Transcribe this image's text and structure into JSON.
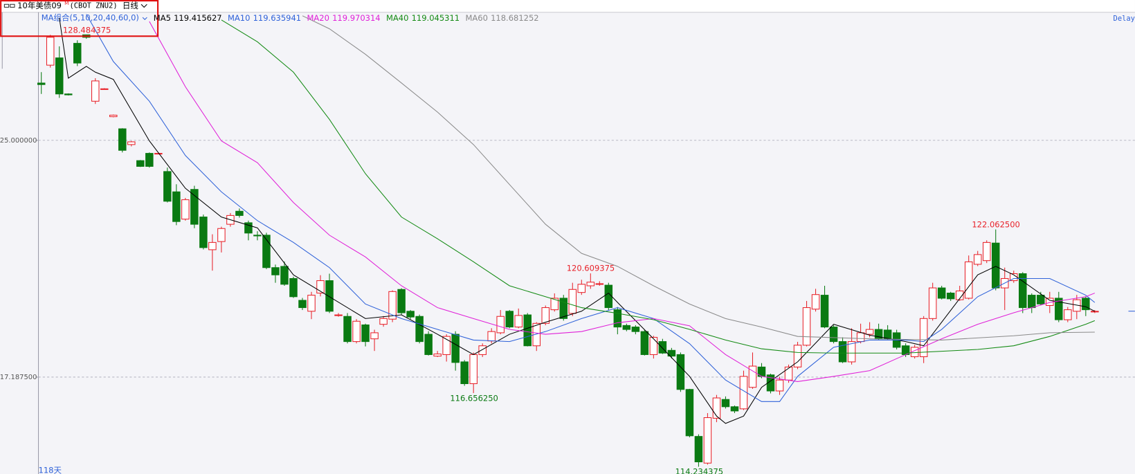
{
  "chart_data": {
    "type": "candlestick",
    "header": {
      "instrument": "10年美债09",
      "flag": "M",
      "code": "(CBOT ZNU2)",
      "period": "日线"
    },
    "ma_group": "MA组合(5,10,20,40,60,0)",
    "delay": "Delay",
    "days": "118天",
    "ylim": [
      113.99,
      129.2
    ],
    "yticks": [
      {
        "value": 125,
        "label": "125.000000"
      },
      {
        "value": 117.1875,
        "label": "117.187500"
      }
    ],
    "grid": true,
    "up_color": "#e8222a",
    "down_color": "#0a7a12",
    "annotations": [
      "128.484375",
      "122.062500",
      "120.609375",
      "116.656250",
      "114.234375"
    ],
    "ohlc": [
      [
        126.89,
        127.25,
        126.53,
        126.84
      ],
      [
        127.48,
        128.48,
        127.4,
        128.4
      ],
      [
        127.72,
        128.1,
        126.4,
        126.53
      ],
      [
        126.53,
        126.55,
        126.48,
        126.5
      ],
      [
        128.2,
        128.3,
        127.45,
        127.55
      ],
      [
        128.48,
        128.48,
        128.35,
        128.4
      ],
      [
        126.29,
        127.05,
        126.2,
        126.96
      ],
      [
        126.7,
        126.72,
        126.68,
        126.7
      ],
      [
        125.78,
        125.85,
        125.76,
        125.83
      ],
      [
        125.38,
        125.4,
        124.6,
        124.67
      ],
      [
        124.86,
        124.98,
        124.8,
        124.95
      ],
      [
        124.33,
        124.35,
        124.12,
        124.14
      ],
      [
        124.57,
        124.6,
        124.1,
        124.14
      ],
      [
        124.57,
        124.58,
        124.56,
        124.57
      ],
      [
        123.97,
        124.1,
        122.95,
        122.99
      ],
      [
        123.3,
        123.55,
        122.2,
        122.32
      ],
      [
        122.4,
        123.1,
        122.35,
        123.04
      ],
      [
        123.38,
        123.5,
        122.1,
        122.23
      ],
      [
        122.47,
        122.55,
        121.4,
        121.46
      ],
      [
        121.39,
        121.9,
        120.7,
        121.63
      ],
      [
        121.66,
        122.15,
        121.3,
        122.09
      ],
      [
        122.23,
        122.6,
        122.15,
        122.52
      ],
      [
        122.66,
        122.75,
        122.45,
        122.52
      ],
      [
        122.28,
        122.35,
        121.7,
        121.94
      ],
      [
        121.87,
        122.0,
        121.7,
        121.85
      ],
      [
        121.87,
        121.95,
        120.75,
        120.8
      ],
      [
        120.8,
        120.9,
        120.3,
        120.56
      ],
      [
        120.84,
        121.0,
        120.2,
        120.25
      ],
      [
        120.44,
        120.5,
        119.8,
        119.84
      ],
      [
        119.72,
        119.8,
        119.4,
        119.48
      ],
      [
        119.36,
        120.0,
        119.1,
        119.89
      ],
      [
        119.96,
        120.55,
        119.85,
        120.37
      ],
      [
        120.37,
        120.6,
        119.3,
        119.36
      ],
      [
        119.24,
        119.3,
        119.18,
        119.24
      ],
      [
        119.19,
        119.3,
        118.3,
        118.36
      ],
      [
        118.36,
        119.1,
        118.3,
        119.03
      ],
      [
        118.91,
        118.95,
        118.2,
        118.36
      ],
      [
        118.45,
        118.75,
        118.05,
        118.65
      ],
      [
        118.93,
        119.2,
        118.85,
        119.12
      ],
      [
        119.1,
        120.05,
        119.0,
        120.01
      ],
      [
        120.08,
        120.12,
        119.25,
        119.31
      ],
      [
        119.36,
        119.4,
        119.1,
        119.17
      ],
      [
        119.19,
        119.25,
        118.3,
        118.36
      ],
      [
        118.6,
        118.7,
        117.9,
        117.93
      ],
      [
        117.88,
        118.05,
        117.85,
        117.95
      ],
      [
        117.93,
        118.6,
        117.7,
        118.53
      ],
      [
        118.6,
        118.7,
        117.4,
        117.67
      ],
      [
        117.69,
        117.75,
        116.9,
        116.97
      ],
      [
        116.97,
        118.0,
        116.66,
        117.93
      ],
      [
        117.93,
        118.3,
        117.85,
        118.22
      ],
      [
        118.38,
        118.8,
        118.3,
        118.69
      ],
      [
        118.65,
        119.4,
        118.6,
        119.19
      ],
      [
        119.36,
        119.4,
        118.8,
        118.84
      ],
      [
        118.84,
        119.45,
        118.8,
        119.22
      ],
      [
        119.24,
        119.3,
        118.2,
        118.22
      ],
      [
        118.22,
        119.0,
        118.05,
        118.96
      ],
      [
        118.96,
        119.55,
        118.9,
        119.48
      ],
      [
        119.41,
        119.95,
        119.35,
        119.79
      ],
      [
        119.79,
        119.9,
        119.05,
        119.12
      ],
      [
        119.29,
        120.3,
        119.2,
        120.08
      ],
      [
        119.98,
        120.4,
        119.9,
        120.25
      ],
      [
        120.2,
        120.61,
        120.1,
        120.32
      ],
      [
        120.27,
        120.35,
        120.2,
        120.27
      ],
      [
        120.22,
        120.3,
        119.4,
        119.48
      ],
      [
        119.41,
        119.5,
        118.6,
        118.84
      ],
      [
        118.89,
        118.95,
        118.7,
        118.76
      ],
      [
        118.84,
        118.9,
        118.6,
        118.69
      ],
      [
        118.69,
        118.75,
        117.9,
        117.93
      ],
      [
        117.93,
        118.55,
        117.8,
        118.5
      ],
      [
        118.36,
        118.45,
        117.95,
        117.98
      ],
      [
        118.07,
        118.15,
        117.8,
        117.88
      ],
      [
        117.93,
        118.0,
        116.7,
        116.78
      ],
      [
        116.78,
        116.8,
        115.2,
        115.25
      ],
      [
        115.23,
        115.3,
        114.23,
        114.39
      ],
      [
        114.35,
        116.0,
        114.3,
        115.85
      ],
      [
        115.83,
        116.6,
        115.7,
        116.5
      ],
      [
        116.45,
        116.55,
        116.15,
        116.21
      ],
      [
        116.21,
        116.25,
        116.0,
        116.07
      ],
      [
        116.14,
        117.4,
        116.1,
        117.21
      ],
      [
        116.85,
        118.0,
        116.8,
        117.55
      ],
      [
        117.52,
        117.65,
        117.15,
        117.21
      ],
      [
        117.26,
        117.3,
        116.65,
        116.73
      ],
      [
        116.73,
        117.2,
        116.6,
        117.09
      ],
      [
        117.09,
        117.6,
        117.0,
        117.52
      ],
      [
        117.52,
        118.35,
        117.45,
        118.24
      ],
      [
        118.24,
        119.7,
        118.2,
        119.48
      ],
      [
        119.43,
        120.1,
        119.35,
        119.91
      ],
      [
        119.89,
        120.2,
        118.8,
        118.84
      ],
      [
        118.84,
        118.9,
        118.3,
        118.36
      ],
      [
        118.36,
        118.5,
        117.65,
        117.69
      ],
      [
        117.69,
        118.8,
        117.6,
        118.36
      ],
      [
        118.36,
        118.95,
        118.3,
        118.65
      ],
      [
        118.6,
        119.0,
        118.5,
        118.76
      ],
      [
        118.76,
        118.95,
        118.4,
        118.45
      ],
      [
        118.74,
        118.9,
        118.4,
        118.45
      ],
      [
        118.65,
        118.75,
        118.1,
        118.17
      ],
      [
        118.22,
        118.3,
        117.85,
        117.93
      ],
      [
        117.86,
        118.25,
        117.8,
        118.17
      ],
      [
        117.86,
        119.2,
        117.65,
        119.12
      ],
      [
        119.12,
        120.3,
        119.05,
        120.13
      ],
      [
        120.13,
        120.2,
        119.75,
        119.79
      ],
      [
        119.96,
        120.0,
        119.7,
        119.77
      ],
      [
        119.74,
        120.2,
        119.7,
        120.03
      ],
      [
        119.79,
        121.2,
        119.75,
        120.99
      ],
      [
        120.91,
        121.35,
        120.85,
        121.23
      ],
      [
        121.03,
        121.7,
        120.95,
        121.63
      ],
      [
        121.61,
        122.06,
        120.05,
        120.13
      ],
      [
        120.13,
        120.8,
        119.4,
        120.44
      ],
      [
        120.37,
        120.7,
        120.3,
        120.6
      ],
      [
        120.6,
        120.65,
        119.3,
        119.48
      ],
      [
        119.89,
        119.95,
        119.3,
        119.48
      ],
      [
        119.89,
        120.0,
        119.55,
        119.6
      ],
      [
        119.55,
        120.0,
        119.3,
        119.79
      ],
      [
        119.79,
        120.0,
        119.0,
        119.08
      ],
      [
        119.08,
        119.5,
        119.0,
        119.41
      ],
      [
        119.36,
        119.9,
        119.1,
        119.74
      ],
      [
        119.79,
        119.85,
        119.2,
        119.41
      ],
      [
        119.36,
        119.4,
        119.3,
        119.36
      ]
    ],
    "series": [
      {
        "name": "MA5",
        "label": "119.415627",
        "color": "#000000",
        "x": [
          2,
          3,
          5,
          6,
          8,
          12,
          16,
          20,
          24,
          28,
          32,
          36,
          40,
          44,
          48,
          52,
          56,
          60,
          63,
          64,
          68,
          72,
          75,
          76,
          78,
          80,
          84,
          88,
          92,
          96,
          98,
          100,
          104,
          106,
          108,
          112,
          116,
          117
        ],
        "values": [
          129.04,
          127.05,
          127.44,
          127.25,
          127.01,
          124.98,
          123.42,
          122.47,
          122.11,
          120.56,
          119.84,
          119.12,
          119.24,
          118.6,
          117.93,
          118.6,
          119.0,
          119.36,
          119.96,
          119.65,
          118.45,
          117.21,
          115.9,
          115.66,
          115.9,
          116.85,
          117.69,
          118.93,
          118.57,
          118.36,
          118.22,
          119.0,
          120.56,
          120.84,
          120.56,
          119.72,
          119.51,
          119.36
        ]
      },
      {
        "name": "MA10",
        "label": "119.635941",
        "color": "#2f62d9",
        "x": [
          5,
          8,
          12,
          16,
          20,
          24,
          28,
          32,
          36,
          40,
          44,
          48,
          52,
          56,
          60,
          64,
          68,
          72,
          76,
          80,
          82,
          84,
          88,
          92,
          96,
          98,
          100,
          104,
          108,
          112,
          116,
          117
        ],
        "values": [
          129.16,
          127.6,
          126.29,
          124.5,
          123.3,
          122.35,
          121.63,
          120.8,
          119.6,
          119.12,
          118.76,
          118.41,
          118.36,
          118.69,
          119.12,
          119.48,
          119.12,
          118.29,
          117.09,
          116.38,
          116.38,
          117.21,
          118.17,
          118.41,
          118.41,
          118.36,
          118.76,
          119.84,
          120.44,
          120.44,
          119.89,
          119.65
        ]
      },
      {
        "name": "MA20",
        "label": "119.970314",
        "color": "#e020d8",
        "x": [
          12,
          16,
          20,
          24,
          28,
          32,
          36,
          40,
          44,
          48,
          52,
          56,
          60,
          64,
          68,
          72,
          76,
          80,
          84,
          88,
          92,
          96,
          100,
          104,
          108,
          112,
          116,
          117
        ],
        "values": [
          128.92,
          126.77,
          124.98,
          124.26,
          122.95,
          121.87,
          121.15,
          120.2,
          119.48,
          119.12,
          118.76,
          118.6,
          118.69,
          118.98,
          119.12,
          118.88,
          117.93,
          117.21,
          117.04,
          117.21,
          117.4,
          117.93,
          118.45,
          118.93,
          119.31,
          119.65,
          119.84,
          119.96
        ]
      },
      {
        "name": "MA40",
        "label": "119.045311",
        "color": "#138a13",
        "x": [
          20,
          24,
          28,
          32,
          36,
          40,
          44,
          48,
          52,
          56,
          60,
          64,
          68,
          72,
          76,
          80,
          84,
          88,
          96,
          104,
          108,
          112,
          116,
          117
        ],
        "values": [
          128.97,
          128.25,
          127.25,
          125.69,
          123.9,
          122.47,
          121.75,
          120.99,
          120.2,
          119.84,
          119.48,
          119.29,
          119.08,
          118.76,
          118.41,
          118.12,
          118.0,
          117.98,
          117.98,
          118.1,
          118.22,
          118.53,
          118.93,
          119.05
        ]
      },
      {
        "name": "MA60",
        "label": "118.681252",
        "color": "#8a8a8a",
        "x": [
          29,
          32,
          36,
          40,
          44,
          48,
          52,
          56,
          60,
          64,
          68,
          72,
          76,
          80,
          84,
          92,
          100,
          108,
          112,
          117
        ],
        "values": [
          129.11,
          128.68,
          127.84,
          126.89,
          125.93,
          124.86,
          123.54,
          122.23,
          121.27,
          120.84,
          120.2,
          119.6,
          119.12,
          118.84,
          118.53,
          118.45,
          118.41,
          118.55,
          118.65,
          118.67
        ]
      }
    ]
  }
}
